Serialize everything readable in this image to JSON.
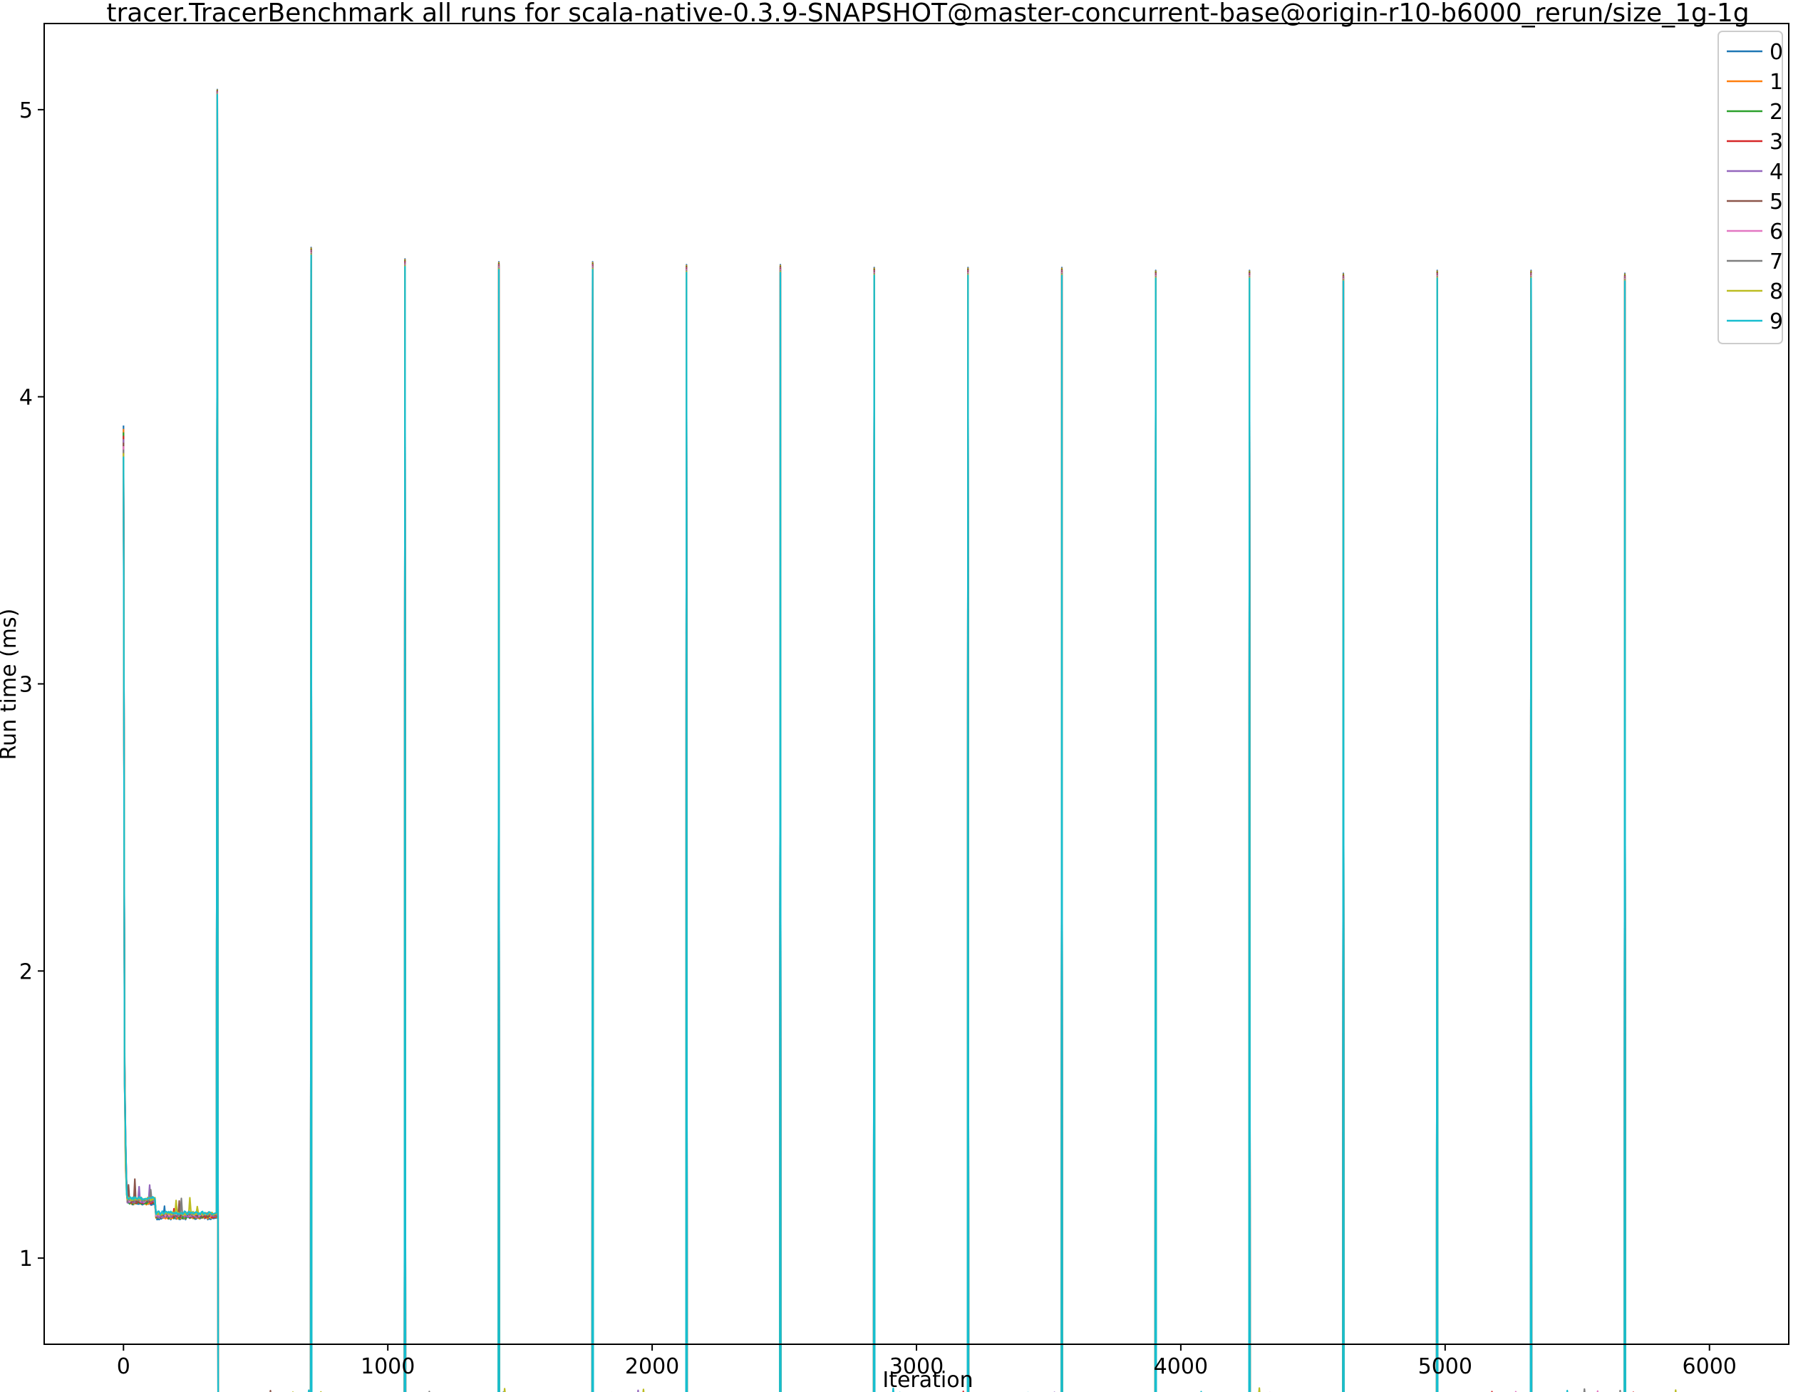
{
  "chart_data": {
    "type": "line",
    "title": "tracer.TracerBenchmark all runs for scala-native-0.3.9-SNAPSHOT@master-concurrent-base@origin-r10-b6000_rerun/size_1g-1g",
    "xlabel": "Iteration",
    "ylabel": "Run time (ms)",
    "xlim": [
      -300,
      6300
    ],
    "ylim": [
      0.7,
      5.3
    ],
    "xticks": [
      0,
      1000,
      2000,
      3000,
      4000,
      5000,
      6000
    ],
    "yticks": [
      1,
      2,
      3,
      4,
      5
    ],
    "grid": false,
    "legend_position": "top-right",
    "series": [
      {
        "name": "0",
        "color": "#1f77b4"
      },
      {
        "name": "1",
        "color": "#ff7f0e"
      },
      {
        "name": "2",
        "color": "#2ca02c"
      },
      {
        "name": "3",
        "color": "#d62728"
      },
      {
        "name": "4",
        "color": "#9467bd"
      },
      {
        "name": "5",
        "color": "#8c564b"
      },
      {
        "name": "6",
        "color": "#e377c2"
      },
      {
        "name": "7",
        "color": "#7f7f7f"
      },
      {
        "name": "8",
        "color": "#bcbd22"
      },
      {
        "name": "9",
        "color": "#17becf"
      }
    ],
    "approx_profile": {
      "initial_peak": {
        "x": 0,
        "y": 3.9
      },
      "warmup_plateau": {
        "x_range": [
          15,
          350
        ],
        "y_start": 1.2,
        "y_end": 1.15
      },
      "max_peak": {
        "x": 355,
        "y": 5.07
      },
      "steady_state": {
        "x_range": [
          355,
          6000
        ],
        "y": 0.49
      },
      "periodic_spikes": [
        {
          "x": 710,
          "y": 4.52
        },
        {
          "x": 1065,
          "y": 4.48
        },
        {
          "x": 1420,
          "y": 4.47
        },
        {
          "x": 1775,
          "y": 4.47
        },
        {
          "x": 2130,
          "y": 4.46
        },
        {
          "x": 2485,
          "y": 4.46
        },
        {
          "x": 2840,
          "y": 4.45
        },
        {
          "x": 3195,
          "y": 4.45
        },
        {
          "x": 3550,
          "y": 4.45
        },
        {
          "x": 3905,
          "y": 4.44
        },
        {
          "x": 4260,
          "y": 4.44
        },
        {
          "x": 4615,
          "y": 4.43
        },
        {
          "x": 4970,
          "y": 4.44
        },
        {
          "x": 5325,
          "y": 4.44
        },
        {
          "x": 5680,
          "y": 4.43
        }
      ]
    }
  }
}
